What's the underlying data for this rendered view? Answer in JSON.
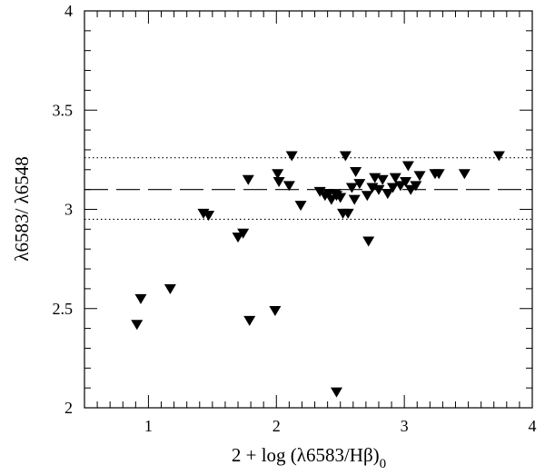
{
  "chart_data": {
    "type": "scatter",
    "xlabel": "2 + log (λ6583/Hβ)",
    "xlabel_subscript": "0",
    "ylabel": "λ6583/ λ6548",
    "xlim": [
      0.5,
      4.0
    ],
    "ylim": [
      2.0,
      4.0
    ],
    "xticks": [
      1,
      2,
      3,
      4
    ],
    "yticks": [
      2,
      2.5,
      3,
      3.5,
      4
    ],
    "xtick_labels": [
      "1",
      "2",
      "3",
      "4"
    ],
    "ytick_labels": [
      "2",
      "2.5",
      "3",
      "3.5",
      "4"
    ],
    "marker": "filled-down-triangle",
    "grid": false,
    "reference_lines": [
      {
        "y": 3.26,
        "style": "dotted"
      },
      {
        "y": 3.1,
        "style": "dashed"
      },
      {
        "y": 2.95,
        "style": "dotted"
      }
    ],
    "points": [
      {
        "x": 0.91,
        "y": 2.42
      },
      {
        "x": 0.94,
        "y": 2.55
      },
      {
        "x": 1.17,
        "y": 2.6
      },
      {
        "x": 1.43,
        "y": 2.98
      },
      {
        "x": 1.47,
        "y": 2.97
      },
      {
        "x": 1.7,
        "y": 2.86
      },
      {
        "x": 1.74,
        "y": 2.88
      },
      {
        "x": 1.78,
        "y": 3.15
      },
      {
        "x": 1.79,
        "y": 2.44
      },
      {
        "x": 1.99,
        "y": 2.49
      },
      {
        "x": 2.01,
        "y": 3.18
      },
      {
        "x": 2.02,
        "y": 3.14
      },
      {
        "x": 2.1,
        "y": 3.12
      },
      {
        "x": 2.12,
        "y": 3.27
      },
      {
        "x": 2.19,
        "y": 3.02
      },
      {
        "x": 2.34,
        "y": 3.09
      },
      {
        "x": 2.38,
        "y": 3.07
      },
      {
        "x": 2.41,
        "y": 3.08
      },
      {
        "x": 2.43,
        "y": 3.05
      },
      {
        "x": 2.46,
        "y": 3.08
      },
      {
        "x": 2.47,
        "y": 3.07
      },
      {
        "x": 2.47,
        "y": 2.08
      },
      {
        "x": 2.5,
        "y": 3.06
      },
      {
        "x": 2.52,
        "y": 2.98
      },
      {
        "x": 2.54,
        "y": 3.27
      },
      {
        "x": 2.56,
        "y": 2.98
      },
      {
        "x": 2.59,
        "y": 3.11
      },
      {
        "x": 2.61,
        "y": 3.05
      },
      {
        "x": 2.62,
        "y": 3.19
      },
      {
        "x": 2.65,
        "y": 3.13
      },
      {
        "x": 2.71,
        "y": 3.07
      },
      {
        "x": 2.72,
        "y": 2.84
      },
      {
        "x": 2.75,
        "y": 3.11
      },
      {
        "x": 2.77,
        "y": 3.16
      },
      {
        "x": 2.8,
        "y": 3.1
      },
      {
        "x": 2.83,
        "y": 3.15
      },
      {
        "x": 2.87,
        "y": 3.08
      },
      {
        "x": 2.91,
        "y": 3.11
      },
      {
        "x": 2.93,
        "y": 3.16
      },
      {
        "x": 2.97,
        "y": 3.12
      },
      {
        "x": 3.01,
        "y": 3.14
      },
      {
        "x": 3.03,
        "y": 3.22
      },
      {
        "x": 3.05,
        "y": 3.1
      },
      {
        "x": 3.09,
        "y": 3.12
      },
      {
        "x": 3.12,
        "y": 3.17
      },
      {
        "x": 3.24,
        "y": 3.18
      },
      {
        "x": 3.27,
        "y": 3.18
      },
      {
        "x": 3.47,
        "y": 3.18
      },
      {
        "x": 3.74,
        "y": 3.27
      }
    ]
  }
}
